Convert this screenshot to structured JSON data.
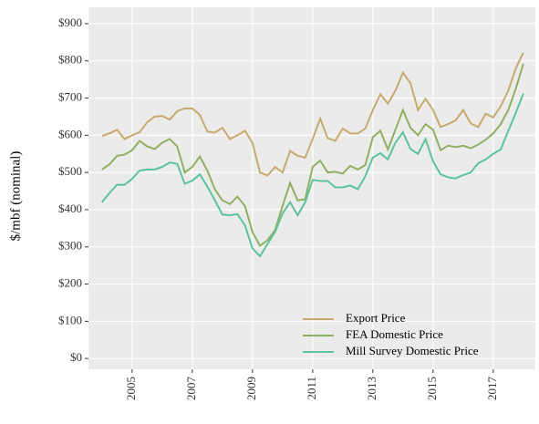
{
  "chart_data": {
    "type": "line",
    "y_label": "$/mbf (nominal)",
    "x": [
      2004,
      2004.25,
      2004.5,
      2004.75,
      2005,
      2005.25,
      2005.5,
      2005.75,
      2006,
      2006.25,
      2006.5,
      2006.75,
      2007,
      2007.25,
      2007.5,
      2007.75,
      2008,
      2008.25,
      2008.5,
      2008.75,
      2009,
      2009.25,
      2009.5,
      2009.75,
      2010,
      2010.25,
      2010.5,
      2010.75,
      2011,
      2011.25,
      2011.5,
      2011.75,
      2012,
      2012.25,
      2012.5,
      2012.75,
      2013,
      2013.25,
      2013.5,
      2013.75,
      2014,
      2014.25,
      2014.5,
      2014.75,
      2015,
      2015.25,
      2015.5,
      2015.75,
      2016,
      2016.25,
      2016.5,
      2016.75,
      2017,
      2017.25,
      2017.5,
      2017.75,
      2018
    ],
    "series": [
      {
        "name": "Export Price",
        "color": "#c9aa6e",
        "values": [
          598,
          605,
          615,
          590,
          600,
          608,
          635,
          650,
          652,
          642,
          665,
          672,
          672,
          655,
          610,
          607,
          620,
          590,
          600,
          612,
          580,
          500,
          492,
          515,
          500,
          558,
          545,
          540,
          590,
          645,
          592,
          585,
          618,
          605,
          605,
          618,
          668,
          710,
          685,
          720,
          768,
          740,
          668,
          698,
          668,
          622,
          630,
          640,
          668,
          632,
          622,
          658,
          648,
          678,
          720,
          780,
          822
        ]
      },
      {
        "name": "FEA Domestic Price",
        "color": "#8fb062",
        "values": [
          508,
          522,
          545,
          548,
          560,
          585,
          570,
          563,
          580,
          590,
          570,
          500,
          515,
          543,
          505,
          455,
          425,
          415,
          435,
          410,
          340,
          303,
          318,
          345,
          410,
          472,
          425,
          428,
          515,
          532,
          500,
          502,
          497,
          518,
          508,
          520,
          595,
          612,
          562,
          615,
          668,
          620,
          600,
          630,
          615,
          560,
          572,
          568,
          572,
          565,
          575,
          588,
          605,
          630,
          668,
          725,
          792
        ]
      },
      {
        "name": "Mill Survey Domestic Price",
        "color": "#5cc49a",
        "values": [
          420,
          445,
          467,
          467,
          483,
          505,
          508,
          508,
          515,
          527,
          523,
          470,
          478,
          495,
          462,
          425,
          387,
          385,
          388,
          358,
          296,
          275,
          308,
          340,
          390,
          420,
          385,
          420,
          480,
          477,
          477,
          460,
          460,
          465,
          455,
          490,
          540,
          552,
          535,
          580,
          608,
          563,
          550,
          590,
          530,
          495,
          487,
          484,
          493,
          500,
          525,
          535,
          550,
          562,
          612,
          660,
          712
        ]
      }
    ],
    "xlim": [
      2003.55,
      2018.4
    ],
    "xticks": [
      2005,
      2007,
      2009,
      2011,
      2013,
      2015,
      2017
    ],
    "ylim": [
      -29,
      944
    ],
    "yticks": [
      {
        "value": 0,
        "label": "$0"
      },
      {
        "value": 100,
        "label": "$100"
      },
      {
        "value": 200,
        "label": "$200"
      },
      {
        "value": 300,
        "label": "$300"
      },
      {
        "value": 400,
        "label": "$400"
      },
      {
        "value": 500,
        "label": "$500"
      },
      {
        "value": 600,
        "label": "$600"
      },
      {
        "value": 700,
        "label": "$700"
      },
      {
        "value": 800,
        "label": "$800"
      },
      {
        "value": 900,
        "label": "$900"
      }
    ],
    "grid": true,
    "legend_position": "bottom-right"
  }
}
